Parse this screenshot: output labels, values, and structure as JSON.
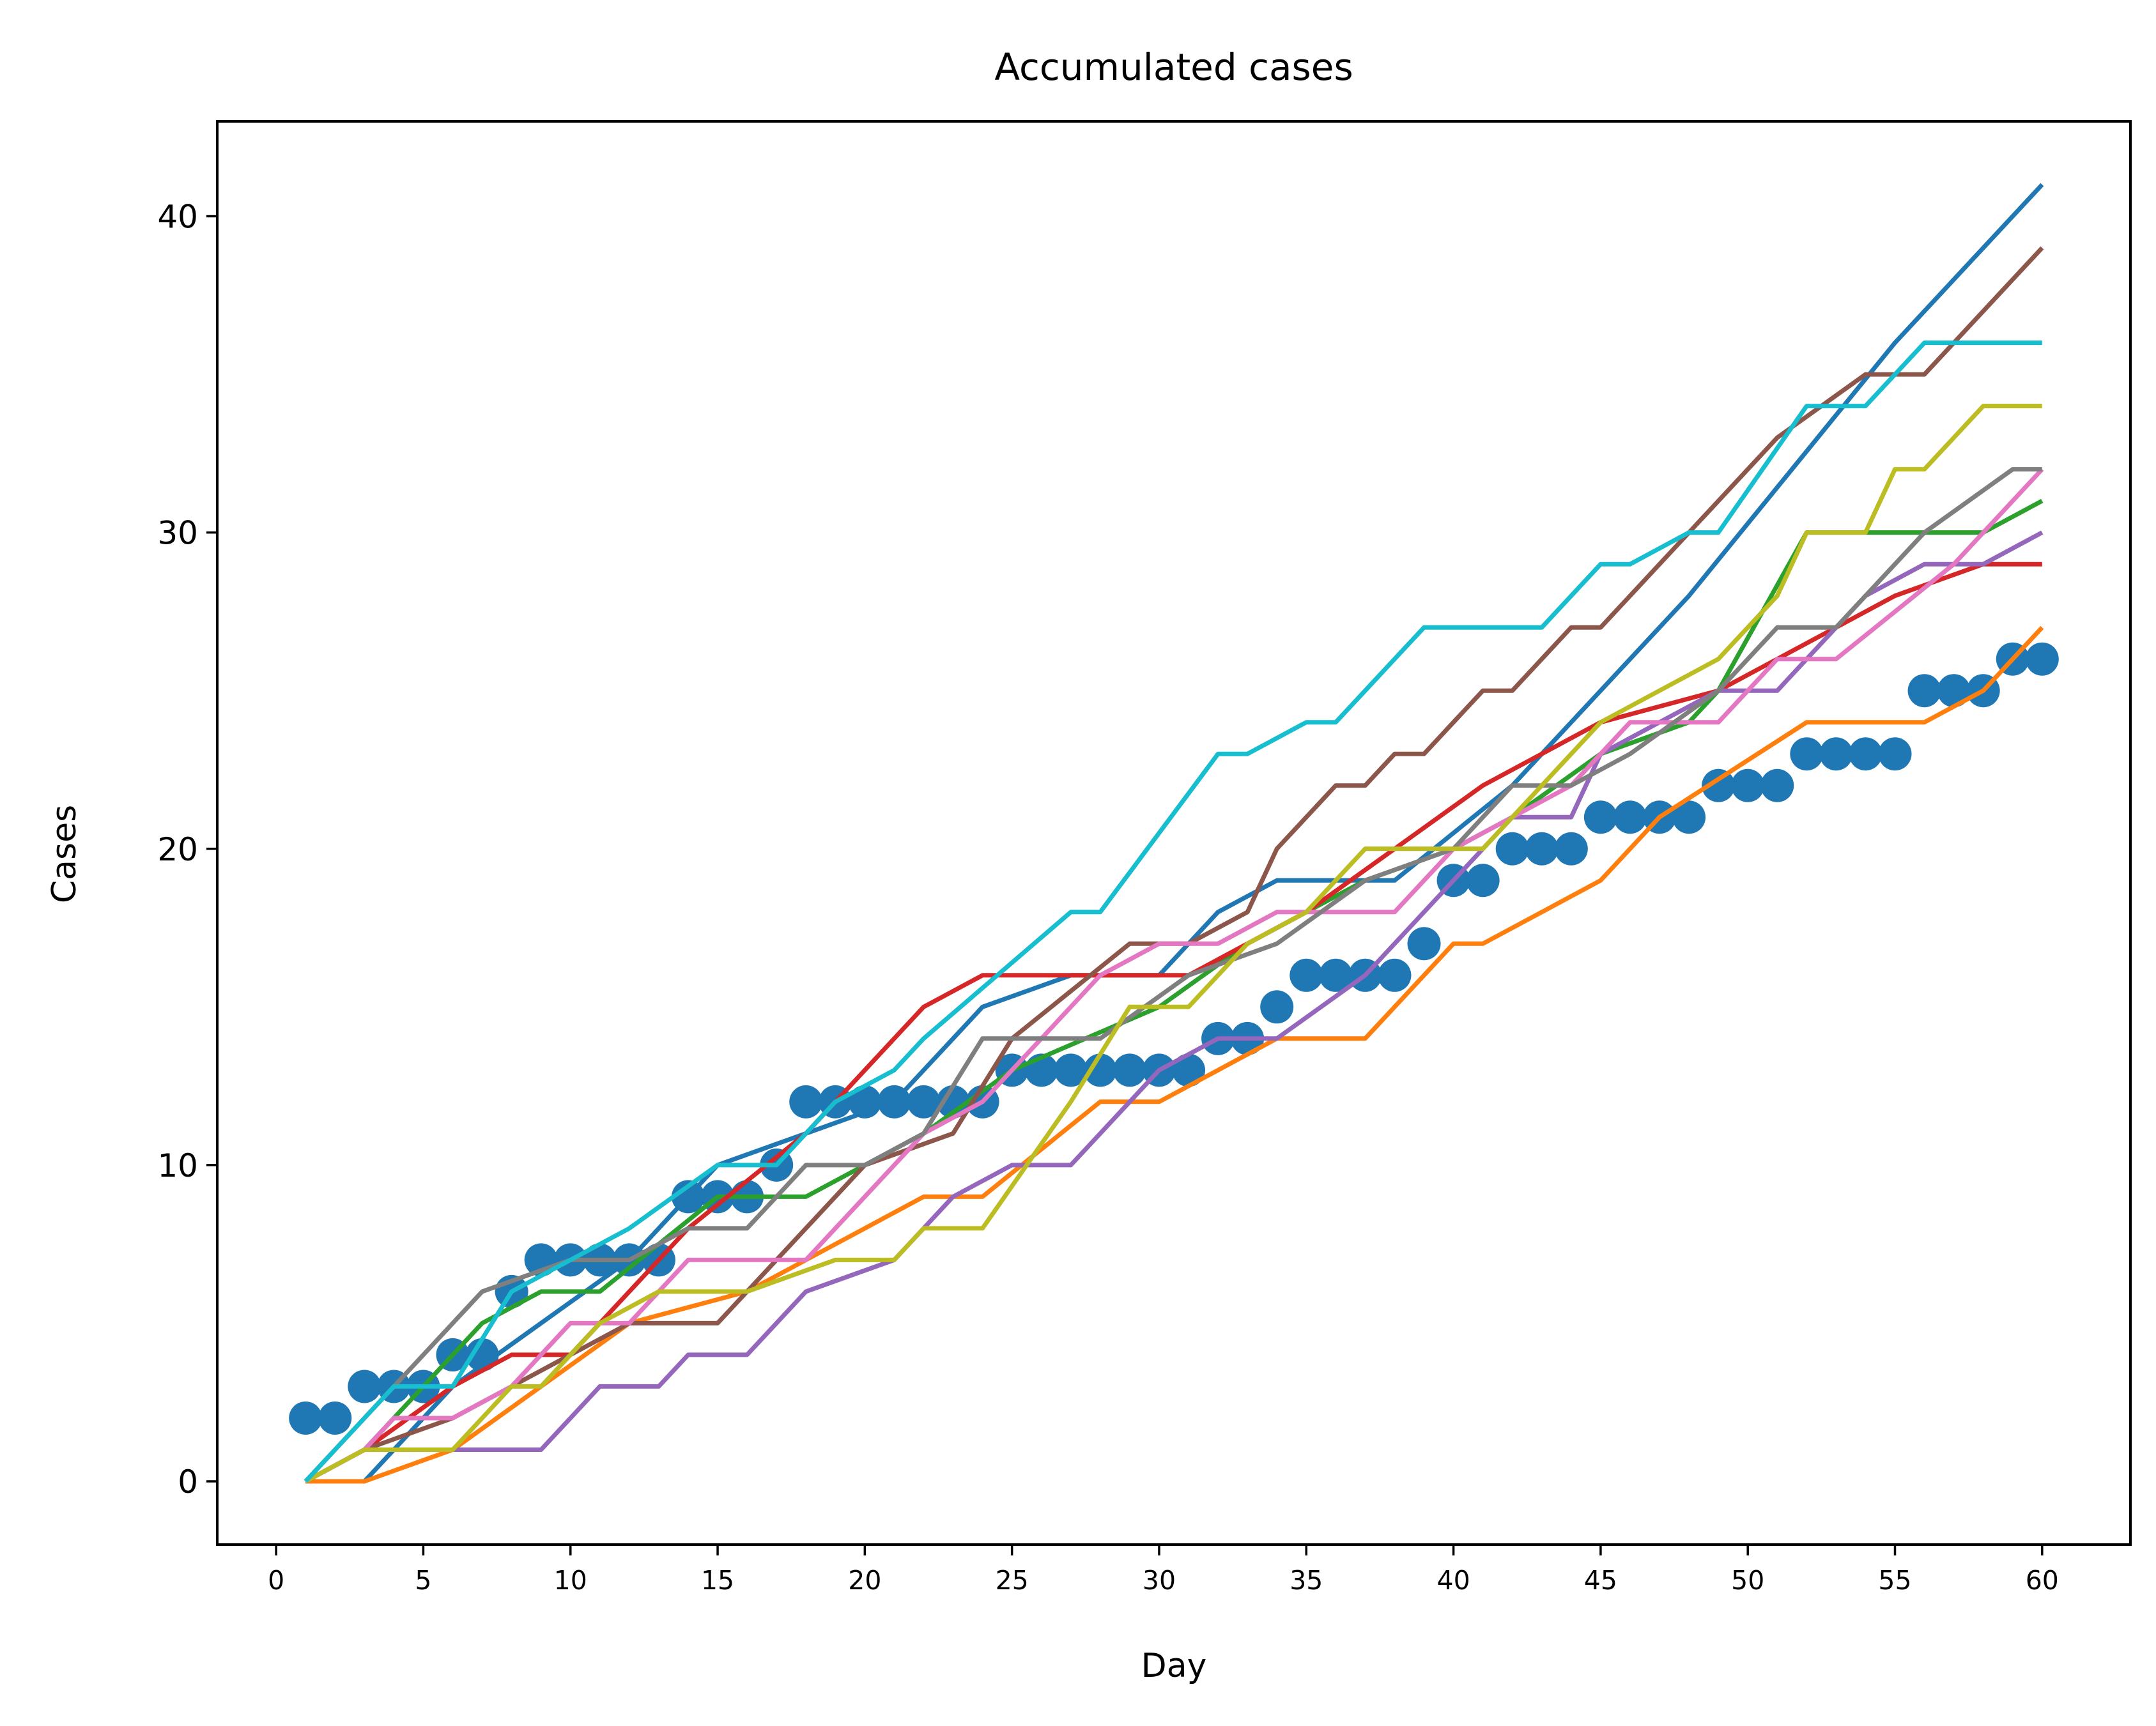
{
  "chart_data": {
    "type": "line",
    "title": "Accumulated cases",
    "xlabel": "Day",
    "ylabel": "Cases",
    "xlim": [
      -2,
      63
    ],
    "ylim": [
      -2,
      43
    ],
    "x_ticks": [
      0,
      5,
      10,
      15,
      20,
      25,
      30,
      35,
      40,
      45,
      50,
      55,
      60
    ],
    "y_ticks": [
      0,
      10,
      20,
      30,
      40
    ],
    "grid": false,
    "legend": "none",
    "observed": {
      "type": "scatter",
      "color": "#1f77b4",
      "x": [
        1,
        2,
        3,
        4,
        5,
        6,
        7,
        8,
        9,
        10,
        11,
        12,
        13,
        14,
        15,
        16,
        17,
        18,
        19,
        20,
        21,
        22,
        23,
        24,
        25,
        26,
        27,
        28,
        29,
        30,
        31,
        32,
        33,
        34,
        35,
        36,
        37,
        38,
        39,
        40,
        41,
        42,
        43,
        44,
        45,
        46,
        47,
        48,
        49,
        50,
        51,
        52,
        53,
        54,
        55,
        56,
        57,
        58,
        59,
        60
      ],
      "y": [
        2,
        2,
        3,
        3,
        3,
        4,
        4,
        6,
        7,
        7,
        7,
        7,
        7,
        9,
        9,
        9,
        10,
        12,
        12,
        12,
        12,
        12,
        12,
        12,
        13,
        13,
        13,
        13,
        13,
        13,
        13,
        14,
        14,
        15,
        16,
        16,
        16,
        16,
        17,
        19,
        19,
        20,
        20,
        20,
        21,
        21,
        21,
        21,
        22,
        22,
        22,
        23,
        23,
        23,
        23,
        25,
        25,
        25,
        26,
        26
      ]
    },
    "series": [
      {
        "color": "#1f77b4",
        "x": [
          1,
          3,
          6,
          9,
          12,
          15,
          18,
          21,
          24,
          27,
          30,
          32,
          34,
          38,
          42,
          48,
          55,
          60
        ],
        "y": [
          0,
          0,
          3,
          5,
          7,
          10,
          11,
          12,
          15,
          16,
          16,
          18,
          19,
          19,
          22,
          28,
          36,
          41
        ]
      },
      {
        "color": "#ff7f0e",
        "x": [
          1,
          3,
          6,
          9,
          12,
          16,
          20,
          22,
          24,
          28,
          30,
          32,
          34,
          37,
          40,
          41,
          43,
          45,
          47,
          52,
          56,
          58,
          60
        ],
        "y": [
          0,
          0,
          1,
          3,
          5,
          6,
          8,
          9,
          9,
          12,
          12,
          13,
          14,
          14,
          17,
          17,
          18,
          19,
          21,
          24,
          24,
          25,
          27
        ]
      },
      {
        "color": "#2ca02c",
        "x": [
          1,
          3,
          7,
          9,
          11,
          15,
          18,
          20,
          22,
          25,
          30,
          33,
          37,
          40,
          42,
          45,
          48,
          49,
          52,
          56,
          58,
          60
        ],
        "y": [
          0,
          1,
          5,
          6,
          6,
          9,
          9,
          10,
          11,
          13,
          15,
          17,
          19,
          20,
          21,
          23,
          24,
          25,
          30,
          30,
          30,
          31
        ]
      },
      {
        "color": "#d62728",
        "x": [
          1,
          3,
          6,
          8,
          10,
          14,
          18,
          21,
          22,
          24,
          28,
          31,
          35,
          38,
          41,
          43,
          45,
          49,
          53,
          55,
          58,
          60
        ],
        "y": [
          0,
          1,
          3,
          4,
          4,
          8,
          11,
          14,
          15,
          16,
          16,
          16,
          18,
          20,
          22,
          23,
          24,
          25,
          27,
          28,
          29,
          29
        ]
      },
      {
        "color": "#9467bd",
        "x": [
          1,
          3,
          7,
          9,
          11,
          13,
          14,
          16,
          18,
          21,
          23,
          25,
          27,
          30,
          32,
          34,
          37,
          39,
          42,
          44,
          45,
          47,
          49,
          51,
          54,
          56,
          58,
          60
        ],
        "y": [
          0,
          1,
          1,
          1,
          3,
          3,
          4,
          4,
          6,
          7,
          9,
          10,
          10,
          13,
          14,
          14,
          16,
          18,
          21,
          21,
          23,
          24,
          25,
          25,
          28,
          29,
          29,
          30
        ]
      },
      {
        "color": "#8c564b",
        "x": [
          1,
          3,
          6,
          8,
          10,
          12,
          15,
          18,
          20,
          23,
          25,
          29,
          31,
          33,
          34,
          36,
          37,
          38,
          39,
          41,
          42,
          44,
          45,
          51,
          54,
          55,
          56,
          60
        ],
        "y": [
          0,
          1,
          2,
          3,
          4,
          5,
          5,
          8,
          10,
          11,
          14,
          17,
          17,
          18,
          20,
          22,
          22,
          23,
          23,
          25,
          25,
          27,
          27,
          33,
          35,
          35,
          35,
          39
        ]
      },
      {
        "color": "#e377c2",
        "x": [
          1,
          3,
          4,
          6,
          8,
          10,
          12,
          14,
          16,
          18,
          20,
          22,
          24,
          28,
          30,
          32,
          34,
          36,
          38,
          40,
          42,
          44,
          46,
          49,
          51,
          53,
          57,
          59,
          60
        ],
        "y": [
          0,
          1,
          2,
          2,
          3,
          5,
          5,
          7,
          7,
          7,
          9,
          11,
          12,
          16,
          17,
          17,
          18,
          18,
          18,
          20,
          21,
          22,
          24,
          24,
          26,
          26,
          29,
          31,
          32
        ]
      },
      {
        "color": "#7f7f7f",
        "x": [
          1,
          3,
          7,
          10,
          12,
          14,
          16,
          18,
          20,
          22,
          24,
          28,
          31,
          34,
          37,
          40,
          42,
          44,
          46,
          49,
          51,
          53,
          56,
          59,
          60
        ],
        "y": [
          0,
          2,
          6,
          7,
          7,
          8,
          8,
          10,
          10,
          11,
          14,
          14,
          16,
          17,
          19,
          20,
          22,
          22,
          23,
          25,
          27,
          27,
          30,
          32,
          32
        ]
      },
      {
        "color": "#bcbd22",
        "x": [
          1,
          3,
          6,
          8,
          9,
          11,
          13,
          16,
          19,
          21,
          22,
          24,
          27,
          29,
          31,
          33,
          35,
          37,
          39,
          41,
          43,
          45,
          47,
          49,
          51,
          52,
          54,
          55,
          56,
          58,
          60
        ],
        "y": [
          0,
          1,
          1,
          3,
          3,
          5,
          6,
          6,
          7,
          7,
          8,
          8,
          12,
          15,
          15,
          17,
          18,
          20,
          20,
          20,
          22,
          24,
          25,
          26,
          28,
          30,
          30,
          32,
          32,
          34,
          34
        ]
      },
      {
        "color": "#17becf",
        "x": [
          1,
          4,
          6,
          8,
          12,
          15,
          17,
          19,
          21,
          22,
          27,
          28,
          32,
          33,
          35,
          36,
          39,
          40,
          43,
          45,
          46,
          48,
          49,
          52,
          54,
          56,
          60
        ],
        "y": [
          0,
          3,
          3,
          6,
          8,
          10,
          10,
          12,
          13,
          14,
          18,
          18,
          23,
          23,
          24,
          24,
          27,
          27,
          27,
          29,
          29,
          30,
          30,
          34,
          34,
          36,
          36
        ]
      }
    ]
  }
}
